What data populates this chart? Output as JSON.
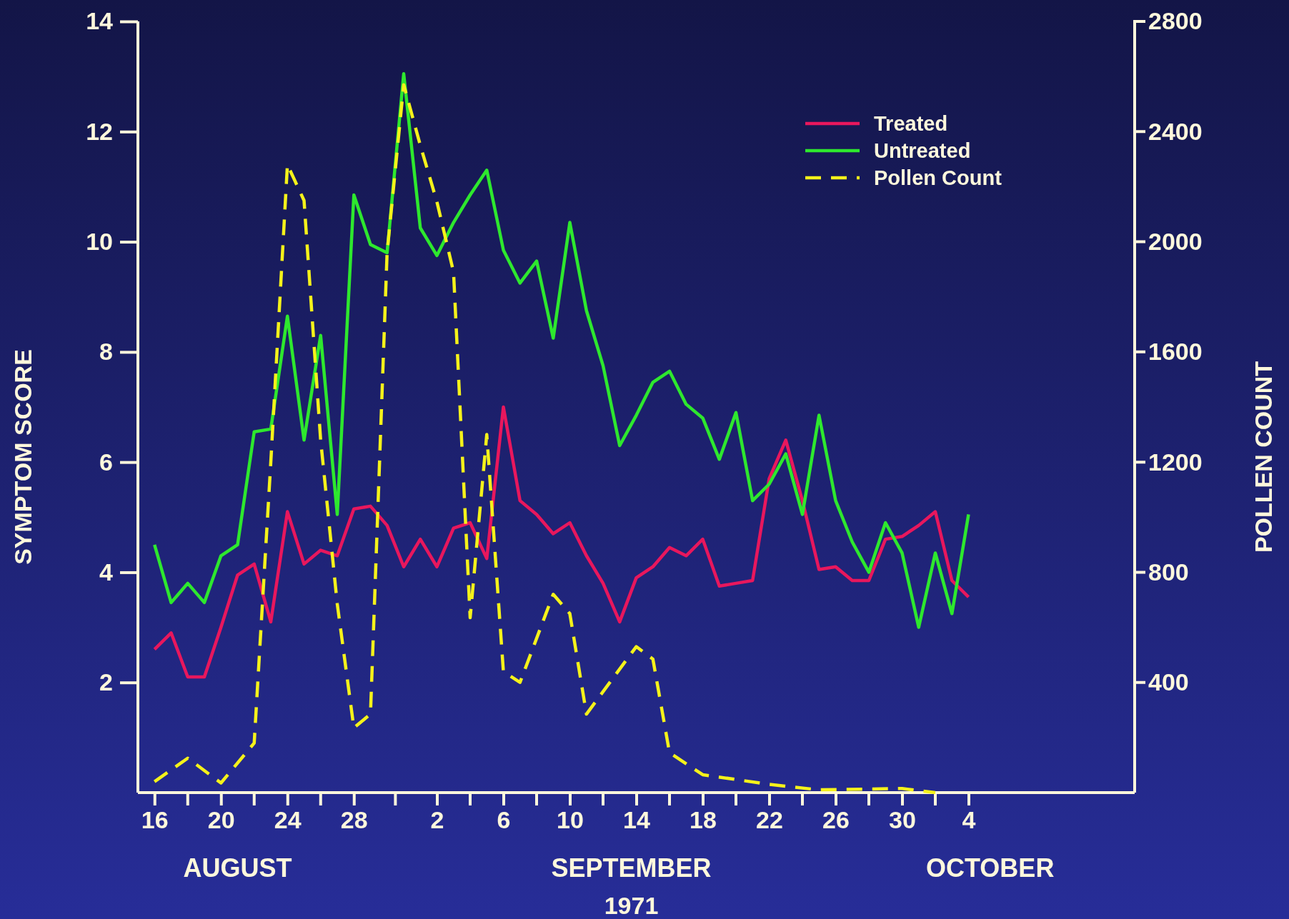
{
  "chart_data": {
    "type": "line",
    "ylabel": "SYMPTOM  SCORE",
    "y2label": "POLLEN COUNT",
    "xlabel": "1971",
    "annotations": [
      "AUGUST",
      "SEPTEMBER",
      "OCTOBER"
    ],
    "xlim": [
      "1971-08-15",
      "1971-10-14"
    ],
    "xticks": [
      {
        "value": "1971-08-16",
        "label": "16"
      },
      {
        "value": "1971-08-20",
        "label": "20"
      },
      {
        "value": "1971-08-24",
        "label": "24"
      },
      {
        "value": "1971-08-28",
        "label": "28"
      },
      {
        "value": "1971-09-02",
        "label": "2"
      },
      {
        "value": "1971-09-06",
        "label": "6"
      },
      {
        "value": "1971-09-10",
        "label": "10"
      },
      {
        "value": "1971-09-14",
        "label": "14"
      },
      {
        "value": "1971-09-18",
        "label": "18"
      },
      {
        "value": "1971-09-22",
        "label": "22"
      },
      {
        "value": "1971-09-26",
        "label": "26"
      },
      {
        "value": "1971-09-30",
        "label": "30"
      },
      {
        "value": "1971-10-04",
        "label": "4"
      }
    ],
    "ylim": [
      0,
      14
    ],
    "yticks": [
      2,
      4,
      6,
      8,
      10,
      12,
      14
    ],
    "y2lim": [
      0,
      2800
    ],
    "y2ticks": [
      400,
      800,
      1200,
      1600,
      2000,
      2400,
      2800
    ],
    "legend": "top right",
    "grid": false,
    "x": [
      "1971-08-16",
      "1971-08-17",
      "1971-08-18",
      "1971-08-19",
      "1971-08-20",
      "1971-08-21",
      "1971-08-22",
      "1971-08-23",
      "1971-08-24",
      "1971-08-25",
      "1971-08-26",
      "1971-08-27",
      "1971-08-28",
      "1971-08-29",
      "1971-08-30",
      "1971-08-31",
      "1971-09-01",
      "1971-09-02",
      "1971-09-03",
      "1971-09-04",
      "1971-09-05",
      "1971-09-06",
      "1971-09-07",
      "1971-09-08",
      "1971-09-09",
      "1971-09-10",
      "1971-09-11",
      "1971-09-12",
      "1971-09-13",
      "1971-09-14",
      "1971-09-15",
      "1971-09-16",
      "1971-09-17",
      "1971-09-18",
      "1971-09-19",
      "1971-09-20",
      "1971-09-21",
      "1971-09-22",
      "1971-09-23",
      "1971-09-24",
      "1971-09-25",
      "1971-09-26",
      "1971-09-27",
      "1971-09-28",
      "1971-09-29",
      "1971-09-30",
      "1971-10-01",
      "1971-10-02",
      "1971-10-03",
      "1971-10-04"
    ],
    "series": [
      {
        "name": "Treated",
        "color": "#e8175d",
        "line_style": "solid",
        "values": [
          2.6,
          2.9,
          2.1,
          2.1,
          3.0,
          3.95,
          4.15,
          3.1,
          5.1,
          4.15,
          4.4,
          4.3,
          5.15,
          5.2,
          4.85,
          4.1,
          4.6,
          4.1,
          4.8,
          4.9,
          4.25,
          7.0,
          5.3,
          5.05,
          4.7,
          4.9,
          4.3,
          3.8,
          3.1,
          3.9,
          4.1,
          4.45,
          4.3,
          4.6,
          3.75,
          3.8,
          3.85,
          5.7,
          6.4,
          5.3,
          4.05,
          4.1,
          3.85,
          3.85,
          4.6,
          4.65,
          4.85,
          5.1,
          3.85,
          3.55
        ]
      },
      {
        "name": "Untreated",
        "color": "#2ee82e",
        "line_style": "solid",
        "values": [
          4.5,
          3.45,
          3.8,
          3.45,
          4.3,
          4.5,
          6.55,
          6.6,
          8.65,
          6.4,
          8.3,
          5.05,
          10.85,
          9.95,
          9.8,
          13.05,
          10.25,
          9.75,
          10.35,
          10.85,
          11.3,
          9.85,
          9.25,
          9.65,
          8.25,
          10.35,
          8.75,
          7.75,
          6.3,
          6.85,
          7.45,
          7.65,
          7.05,
          6.8,
          6.05,
          6.9,
          5.3,
          5.6,
          6.15,
          5.05,
          6.85,
          5.3,
          4.55,
          4.0,
          4.9,
          4.35,
          3.0,
          4.35,
          3.25,
          5.05
        ]
      },
      {
        "name": "Pollen Count",
        "color": "#f5f21a",
        "line_style": "dashed",
        "axis": "y2",
        "x": [
          "1971-08-16",
          "1971-08-18",
          "1971-08-20",
          "1971-08-22",
          "1971-08-23",
          "1971-08-24",
          "1971-08-25",
          "1971-08-26",
          "1971-08-27",
          "1971-08-28",
          "1971-08-29",
          "1971-08-30",
          "1971-08-31",
          "1971-09-01",
          "1971-09-02",
          "1971-09-03",
          "1971-09-04",
          "1971-09-05",
          "1971-09-06",
          "1971-09-07",
          "1971-09-09",
          "1971-09-10",
          "1971-09-11",
          "1971-09-14",
          "1971-09-15",
          "1971-09-16",
          "1971-09-18",
          "1971-09-22",
          "1971-09-25",
          "1971-09-30",
          "1971-10-02"
        ],
        "values": [
          40,
          125,
          35,
          180,
          1200,
          2280,
          2150,
          1280,
          685,
          235,
          285,
          1960,
          2570,
          2350,
          2145,
          1890,
          635,
          1300,
          440,
          400,
          720,
          650,
          285,
          530,
          485,
          145,
          65,
          30,
          10,
          15,
          0
        ]
      }
    ]
  }
}
